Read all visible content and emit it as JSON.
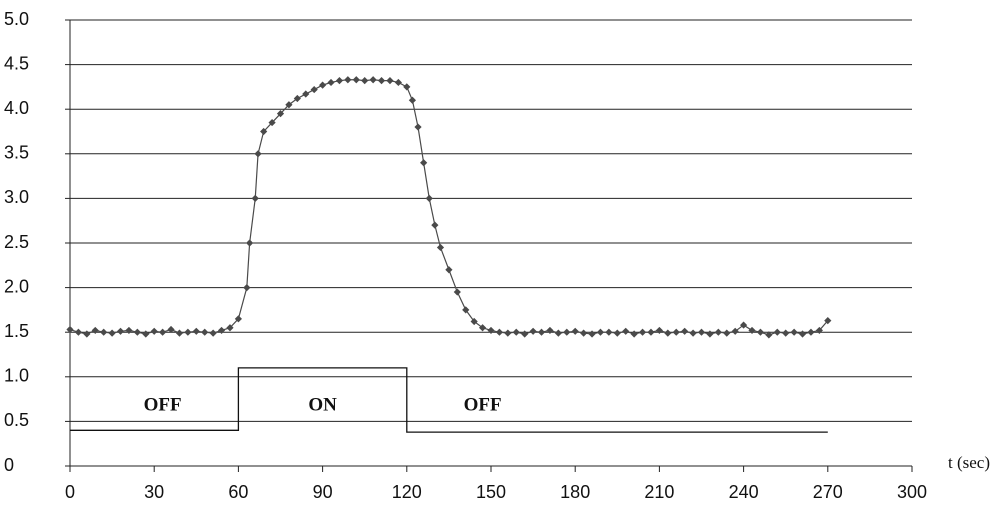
{
  "chart_data": {
    "type": "line",
    "x_label": "t (sec)",
    "xlim": [
      0,
      300
    ],
    "xticks": [
      0,
      30,
      60,
      90,
      120,
      150,
      180,
      210,
      240,
      270,
      300
    ],
    "ylim": [
      0,
      5
    ],
    "yticks": [
      0,
      0.5,
      {
        "value": 1,
        "label": "1.0"
      },
      1.5,
      {
        "value": 2,
        "label": "2.0"
      },
      2.5,
      {
        "value": 3,
        "label": "3.0"
      },
      3.5,
      {
        "value": 4,
        "label": "4.0"
      },
      4.5,
      {
        "value": 5,
        "label": "5.0"
      }
    ],
    "grid": true,
    "series": [
      {
        "color": "#4a4a4a",
        "markers": true,
        "x": [
          0,
          3,
          6,
          9,
          12,
          15,
          18,
          21,
          24,
          27,
          30,
          33,
          36,
          39,
          42,
          45,
          48,
          51,
          54,
          57,
          60,
          63,
          64,
          66,
          67,
          69,
          72,
          75,
          78,
          81,
          84,
          87,
          90,
          93,
          96,
          99,
          102,
          105,
          108,
          111,
          114,
          117,
          120,
          122,
          124,
          126,
          128,
          130,
          132,
          135,
          138,
          141,
          144,
          147,
          150,
          153,
          156,
          159,
          162,
          165,
          168,
          171,
          174,
          177,
          180,
          183,
          186,
          189,
          192,
          195,
          198,
          201,
          204,
          207,
          210,
          213,
          216,
          219,
          222,
          225,
          228,
          231,
          234,
          237,
          240,
          243,
          246,
          249,
          252,
          255,
          258,
          261,
          264,
          267,
          270
        ],
        "values": [
          1.53,
          1.5,
          1.48,
          1.52,
          1.5,
          1.49,
          1.51,
          1.52,
          1.5,
          1.48,
          1.51,
          1.5,
          1.53,
          1.49,
          1.5,
          1.51,
          1.5,
          1.49,
          1.52,
          1.55,
          1.65,
          2.0,
          2.5,
          3.0,
          3.5,
          3.75,
          3.85,
          3.95,
          4.05,
          4.12,
          4.17,
          4.22,
          4.27,
          4.3,
          4.32,
          4.33,
          4.33,
          4.32,
          4.33,
          4.32,
          4.32,
          4.3,
          4.25,
          4.1,
          3.8,
          3.4,
          3.0,
          2.7,
          2.45,
          2.2,
          1.95,
          1.75,
          1.62,
          1.55,
          1.52,
          1.5,
          1.49,
          1.5,
          1.48,
          1.51,
          1.5,
          1.52,
          1.49,
          1.5,
          1.51,
          1.49,
          1.48,
          1.5,
          1.5,
          1.49,
          1.51,
          1.48,
          1.5,
          1.5,
          1.52,
          1.49,
          1.5,
          1.51,
          1.49,
          1.5,
          1.48,
          1.5,
          1.49,
          1.51,
          1.58,
          1.52,
          1.5,
          1.47,
          1.5,
          1.49,
          1.5,
          1.48,
          1.5,
          1.52,
          1.63
        ]
      },
      {
        "color": "#111111",
        "markers": false,
        "x": [
          0,
          60,
          60,
          120,
          120,
          270
        ],
        "values": [
          0.4,
          0.4,
          1.1,
          1.1,
          0.38,
          0.38
        ]
      }
    ],
    "annotations": [
      {
        "text": "OFF",
        "x": 33,
        "y": 0.67
      },
      {
        "text": "ON",
        "x": 90,
        "y": 0.67
      },
      {
        "text": "OFF",
        "x": 147,
        "y": 0.67
      }
    ]
  }
}
